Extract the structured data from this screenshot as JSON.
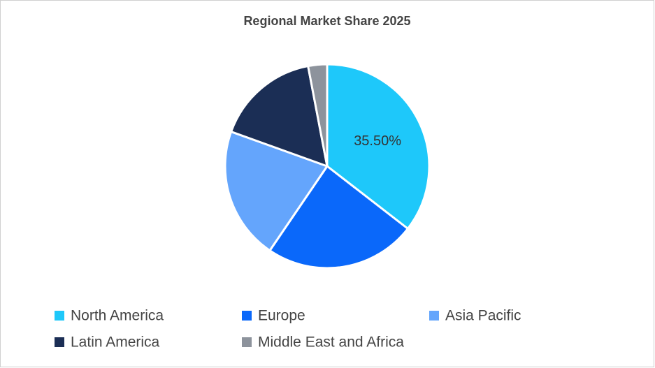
{
  "chart_data": {
    "type": "pie",
    "title": "Regional Market Share 2025",
    "categories": [
      "North America",
      "Europe",
      "Asia Pacific",
      "Latin America",
      "Middle East and Africa"
    ],
    "values": [
      35.5,
      24,
      21,
      16.5,
      3
    ],
    "value_labels": [
      "35.50%",
      null,
      null,
      null,
      null
    ],
    "colors": [
      "#1ec8fa",
      "#0a68fa",
      "#64a5fc",
      "#1b2e55",
      "#8d939c"
    ],
    "legend": "bottom"
  }
}
